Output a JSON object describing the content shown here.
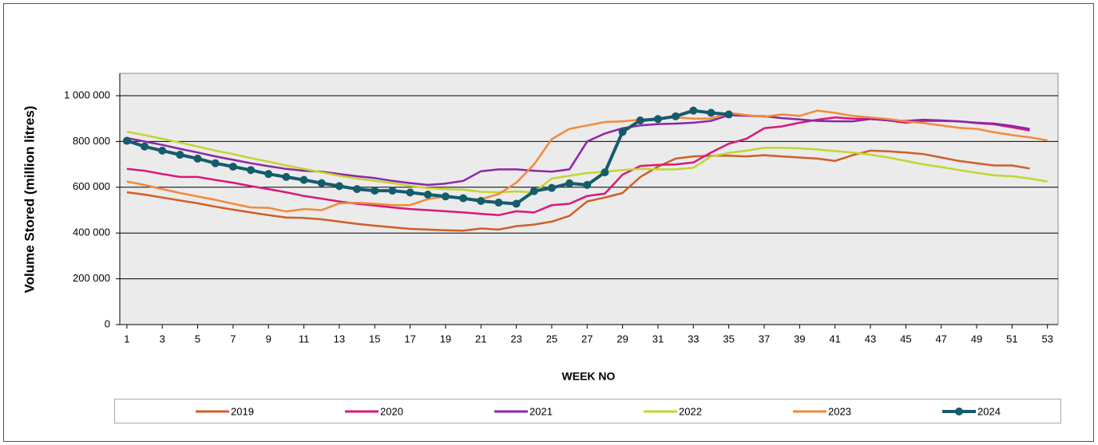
{
  "chart_data": {
    "type": "line",
    "y_label": "Volume Stored (million litres)",
    "x_label": "WEEK NO",
    "x": [
      1,
      2,
      3,
      4,
      5,
      6,
      7,
      8,
      9,
      10,
      11,
      12,
      13,
      14,
      15,
      16,
      17,
      18,
      19,
      20,
      21,
      22,
      23,
      24,
      25,
      26,
      27,
      28,
      29,
      30,
      31,
      32,
      33,
      34,
      35,
      36,
      37,
      38,
      39,
      40,
      41,
      42,
      43,
      44,
      45,
      46,
      47,
      48,
      49,
      50,
      51,
      52,
      53
    ],
    "xlim": [
      0.6,
      53.6
    ],
    "xticks": [
      1,
      3,
      5,
      7,
      9,
      11,
      13,
      15,
      17,
      19,
      21,
      23,
      25,
      27,
      29,
      31,
      33,
      35,
      37,
      39,
      41,
      43,
      45,
      47,
      49,
      51,
      53
    ],
    "ylim": [
      0,
      1000000
    ],
    "yticks": [
      0,
      {
        "value": 200000,
        "label": "200 000"
      },
      {
        "value": 400000,
        "label": "400 000"
      },
      {
        "value": 600000,
        "label": "600 000"
      },
      {
        "value": 800000,
        "label": "800 000"
      },
      {
        "value": 1000000,
        "label": "1 000 000"
      }
    ],
    "grid": true,
    "legend": "bottom",
    "series": [
      {
        "name": "2019",
        "color": "#cf5f27",
        "markers": false,
        "values": [
          578000,
          568000,
          555000,
          542000,
          530000,
          515000,
          502000,
          490000,
          478000,
          468000,
          466000,
          460000,
          450000,
          440000,
          432000,
          425000,
          418000,
          415000,
          412000,
          410000,
          420000,
          415000,
          430000,
          437000,
          450000,
          475000,
          538000,
          555000,
          575000,
          645000,
          690000,
          725000,
          735000,
          738000,
          738000,
          735000,
          740000,
          735000,
          730000,
          725000,
          715000,
          740000,
          760000,
          757000,
          752000,
          745000,
          730000,
          715000,
          705000,
          695000,
          695000,
          682000,
          null
        ]
      },
      {
        "name": "2020",
        "color": "#d8197c",
        "markers": false,
        "values": [
          680000,
          672000,
          658000,
          645000,
          645000,
          632000,
          620000,
          605000,
          592000,
          578000,
          562000,
          550000,
          538000,
          528000,
          520000,
          512000,
          505000,
          500000,
          495000,
          490000,
          484000,
          478000,
          495000,
          490000,
          522000,
          528000,
          562000,
          572000,
          655000,
          693000,
          698000,
          700000,
          708000,
          752000,
          790000,
          812000,
          858000,
          866000,
          882000,
          895000,
          905000,
          900000,
          898000,
          892000,
          882000,
          890000,
          890000,
          888000,
          880000,
          875000,
          862000,
          848000,
          null
        ]
      },
      {
        "name": "2021",
        "color": "#8e25a8",
        "markers": false,
        "values": [
          815000,
          800000,
          785000,
          768000,
          752000,
          735000,
          720000,
          705000,
          692000,
          680000,
          672000,
          668000,
          658000,
          648000,
          640000,
          628000,
          618000,
          610000,
          616000,
          628000,
          670000,
          678000,
          678000,
          672000,
          668000,
          678000,
          800000,
          835000,
          858000,
          870000,
          876000,
          878000,
          882000,
          890000,
          915000,
          912000,
          910000,
          902000,
          896000,
          890000,
          888000,
          888000,
          898000,
          893000,
          890000,
          895000,
          892000,
          888000,
          882000,
          878000,
          868000,
          855000,
          null
        ]
      },
      {
        "name": "2022",
        "color": "#c2d52f",
        "markers": false,
        "values": [
          843000,
          828000,
          812000,
          795000,
          778000,
          760000,
          745000,
          728000,
          712000,
          695000,
          680000,
          665000,
          650000,
          638000,
          628000,
          618000,
          606000,
          596000,
          592000,
          590000,
          580000,
          578000,
          582000,
          578000,
          638000,
          650000,
          662000,
          668000,
          675000,
          680000,
          678000,
          678000,
          685000,
          735000,
          750000,
          760000,
          772000,
          772000,
          770000,
          765000,
          758000,
          752000,
          742000,
          730000,
          715000,
          700000,
          688000,
          675000,
          663000,
          652000,
          648000,
          638000,
          625000
        ]
      },
      {
        "name": "2023",
        "color": "#f28a3a",
        "markers": false,
        "values": [
          625000,
          610000,
          592000,
          575000,
          560000,
          545000,
          528000,
          512000,
          510000,
          494000,
          505000,
          500000,
          530000,
          532000,
          528000,
          522000,
          522000,
          548000,
          560000,
          548000,
          548000,
          570000,
          620000,
          700000,
          810000,
          855000,
          870000,
          885000,
          888000,
          895000,
          900000,
          905000,
          900000,
          900000,
          925000,
          915000,
          908000,
          918000,
          912000,
          935000,
          925000,
          912000,
          905000,
          898000,
          888000,
          880000,
          870000,
          860000,
          855000,
          840000,
          828000,
          818000,
          805000
        ]
      },
      {
        "name": "2024",
        "color": "#155c6b",
        "markers": true,
        "values": [
          803000,
          778000,
          760000,
          742000,
          725000,
          705000,
          690000,
          675000,
          658000,
          645000,
          632000,
          618000,
          605000,
          592000,
          585000,
          585000,
          577000,
          568000,
          560000,
          552000,
          540000,
          533000,
          528000,
          583000,
          597000,
          617000,
          610000,
          665000,
          842000,
          892000,
          898000,
          910000,
          935000,
          925000,
          918000,
          null,
          null,
          null,
          null,
          null,
          null,
          null,
          null,
          null,
          null,
          null,
          null,
          null,
          null,
          null,
          null,
          null,
          null
        ]
      }
    ]
  }
}
